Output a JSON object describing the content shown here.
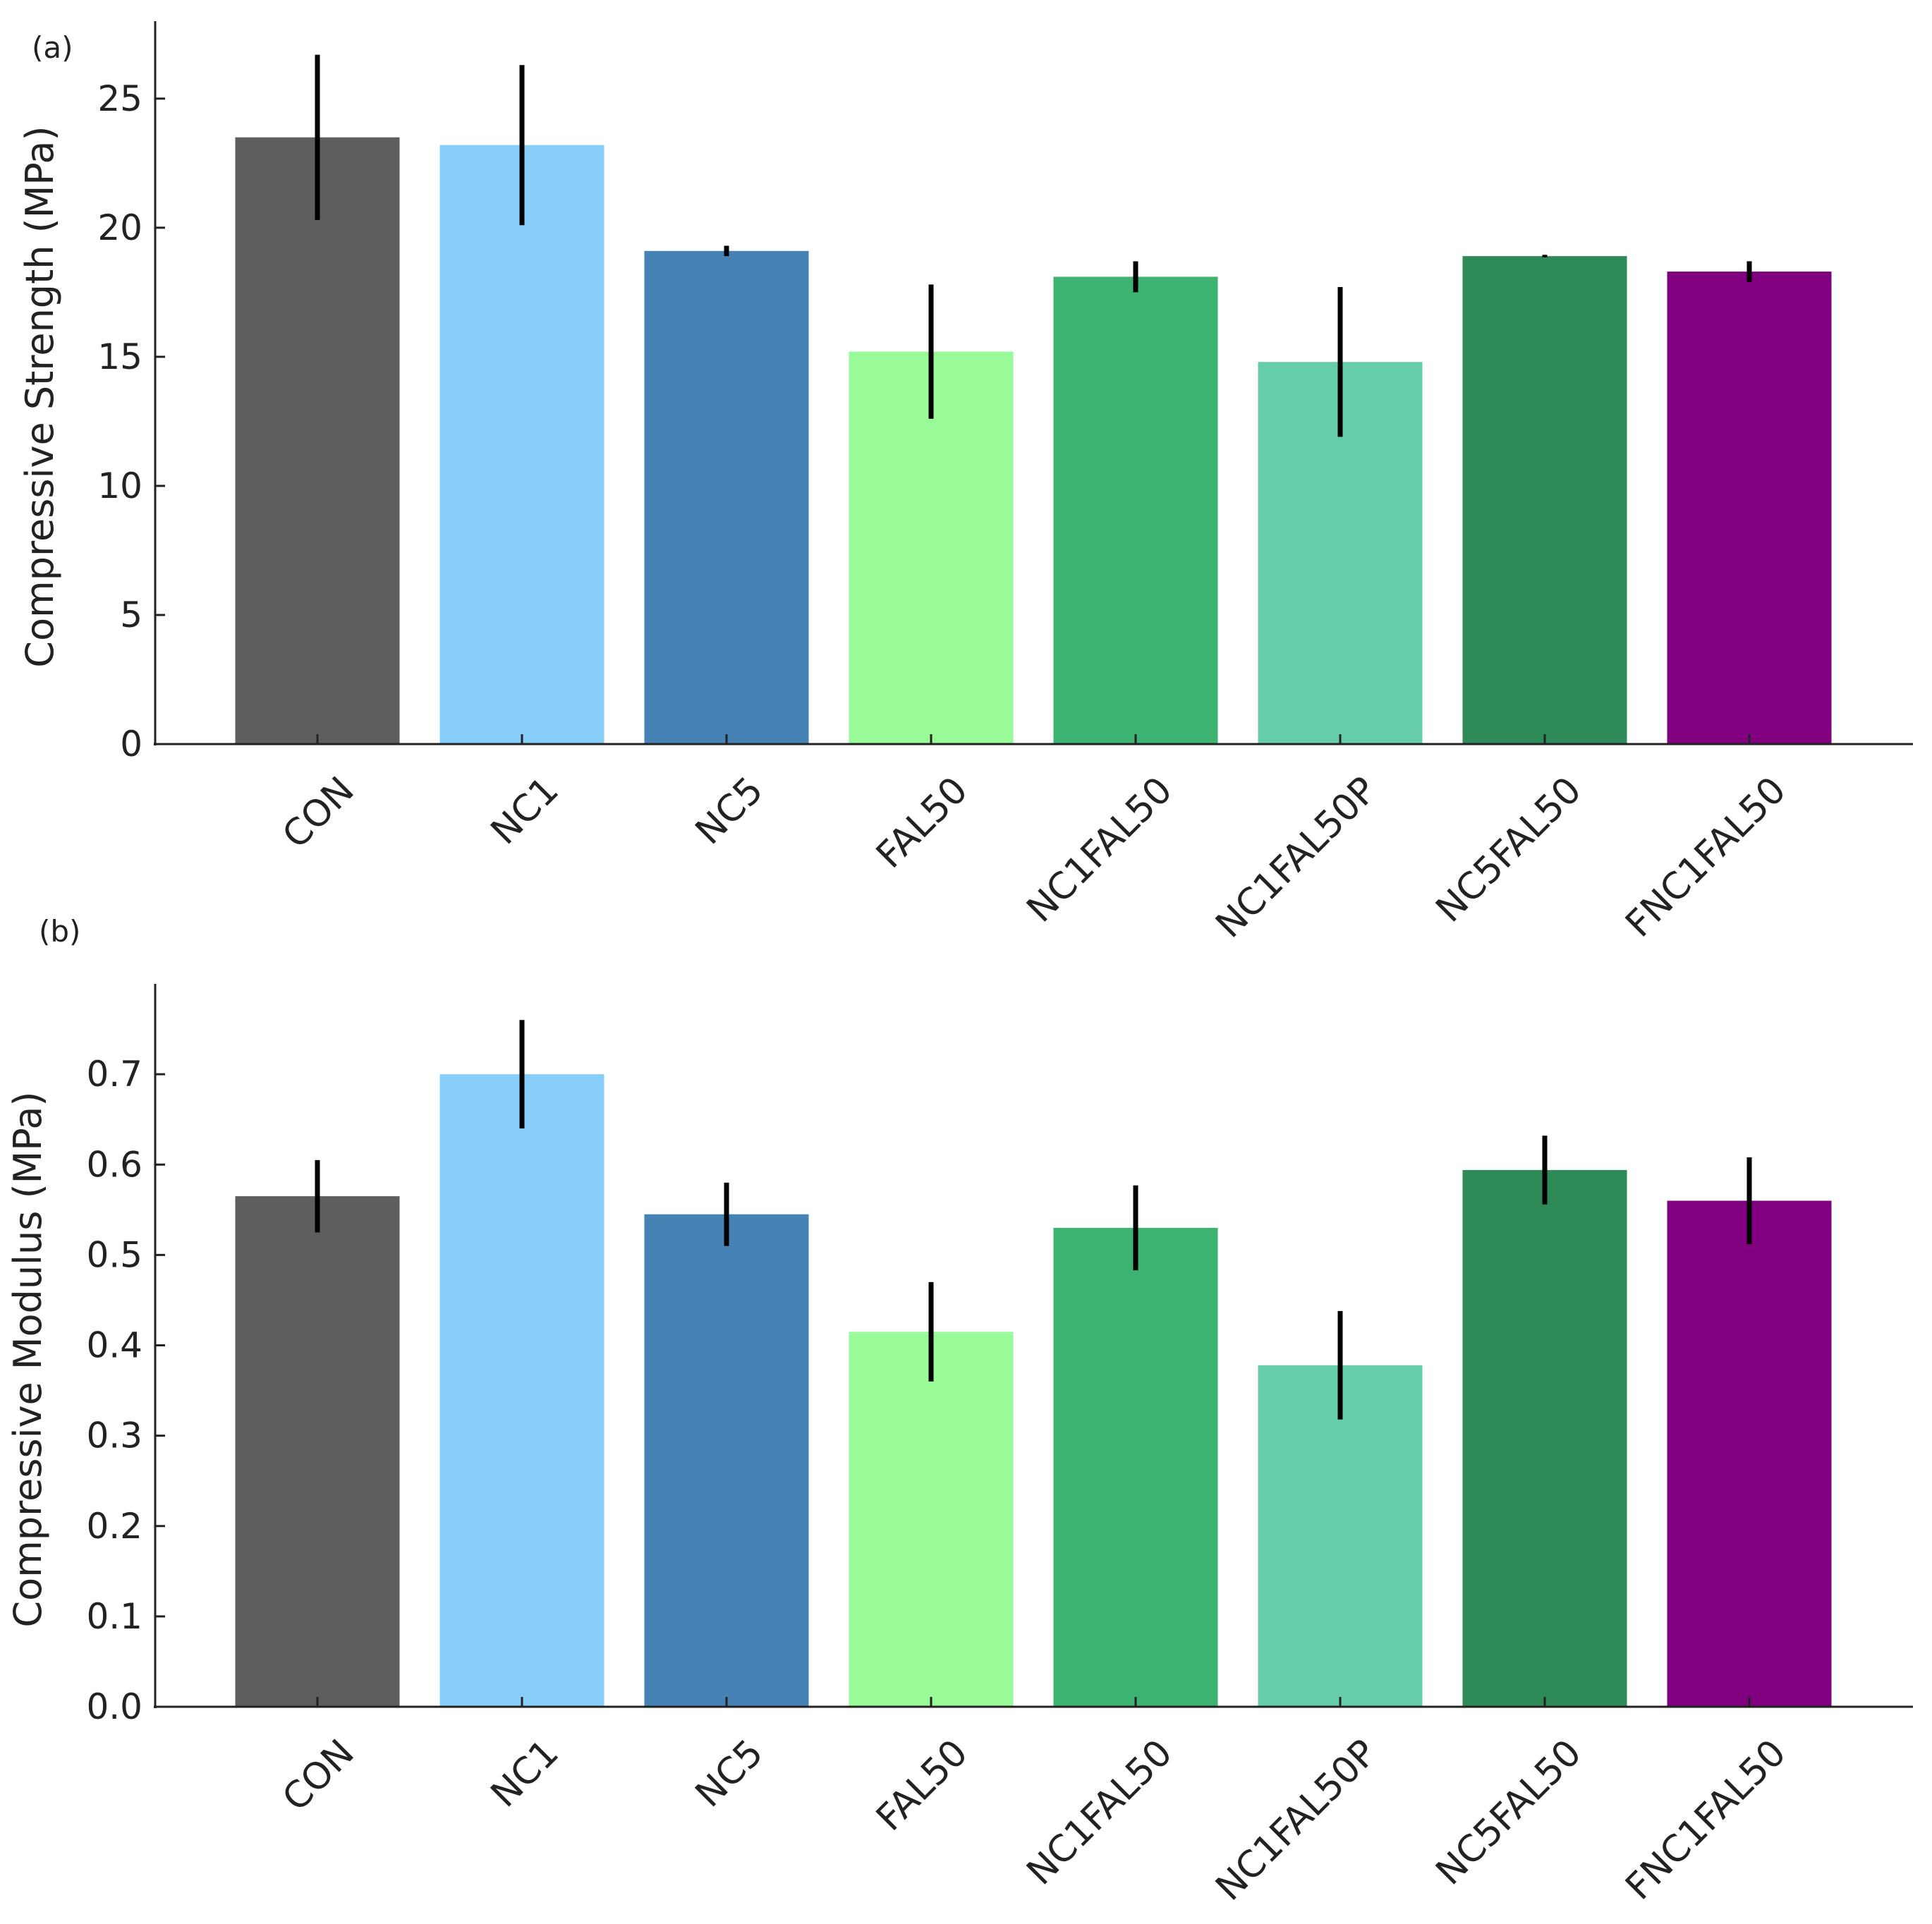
{
  "chart_data": [
    {
      "type": "bar",
      "panel_label": "(a)",
      "title": "",
      "xlabel": "",
      "ylabel": "Compressive Strength (MPa)",
      "categories": [
        "CON",
        "NC1",
        "NC5",
        "FAL50",
        "NC1FAL50",
        "NC1FAL50P",
        "NC5FAL50",
        "FNC1FAL50"
      ],
      "values": [
        23.5,
        23.2,
        19.1,
        15.2,
        18.1,
        14.8,
        18.9,
        18.3
      ],
      "errors": [
        3.2,
        3.1,
        0.2,
        2.6,
        0.6,
        2.9,
        0.05,
        0.4
      ],
      "ylim": [
        0,
        28
      ],
      "yticks": [
        0,
        5,
        10,
        15,
        20,
        25
      ],
      "ytick_labels": [
        "0",
        "5",
        "10",
        "15",
        "20",
        "25"
      ],
      "grid": false,
      "bar_colors": [
        "#5e5e5e",
        "#87cefa",
        "#4682b4",
        "#98fb98",
        "#3cb371",
        "#66cdaa",
        "#2e8b57",
        "#800080"
      ]
    },
    {
      "type": "bar",
      "panel_label": "(b)",
      "title": "",
      "xlabel": "",
      "ylabel": "Compressive Modulus (MPa)",
      "categories": [
        "CON",
        "NC1",
        "NC5",
        "FAL50",
        "NC1FAL50",
        "NC1FAL50P",
        "NC5FAL50",
        "FNC1FAL50"
      ],
      "values": [
        0.565,
        0.7,
        0.545,
        0.415,
        0.53,
        0.378,
        0.594,
        0.56
      ],
      "errors": [
        0.04,
        0.06,
        0.035,
        0.055,
        0.047,
        0.06,
        0.038,
        0.048
      ],
      "ylim": [
        0,
        0.8
      ],
      "yticks": [
        0.0,
        0.1,
        0.2,
        0.3,
        0.4,
        0.5,
        0.6,
        0.7
      ],
      "ytick_labels": [
        "0.0",
        "0.1",
        "0.2",
        "0.3",
        "0.4",
        "0.5",
        "0.6",
        "0.7"
      ],
      "grid": false,
      "bar_colors": [
        "#5e5e5e",
        "#87cefa",
        "#4682b4",
        "#98fb98",
        "#3cb371",
        "#66cdaa",
        "#2e8b57",
        "#800080"
      ]
    }
  ]
}
